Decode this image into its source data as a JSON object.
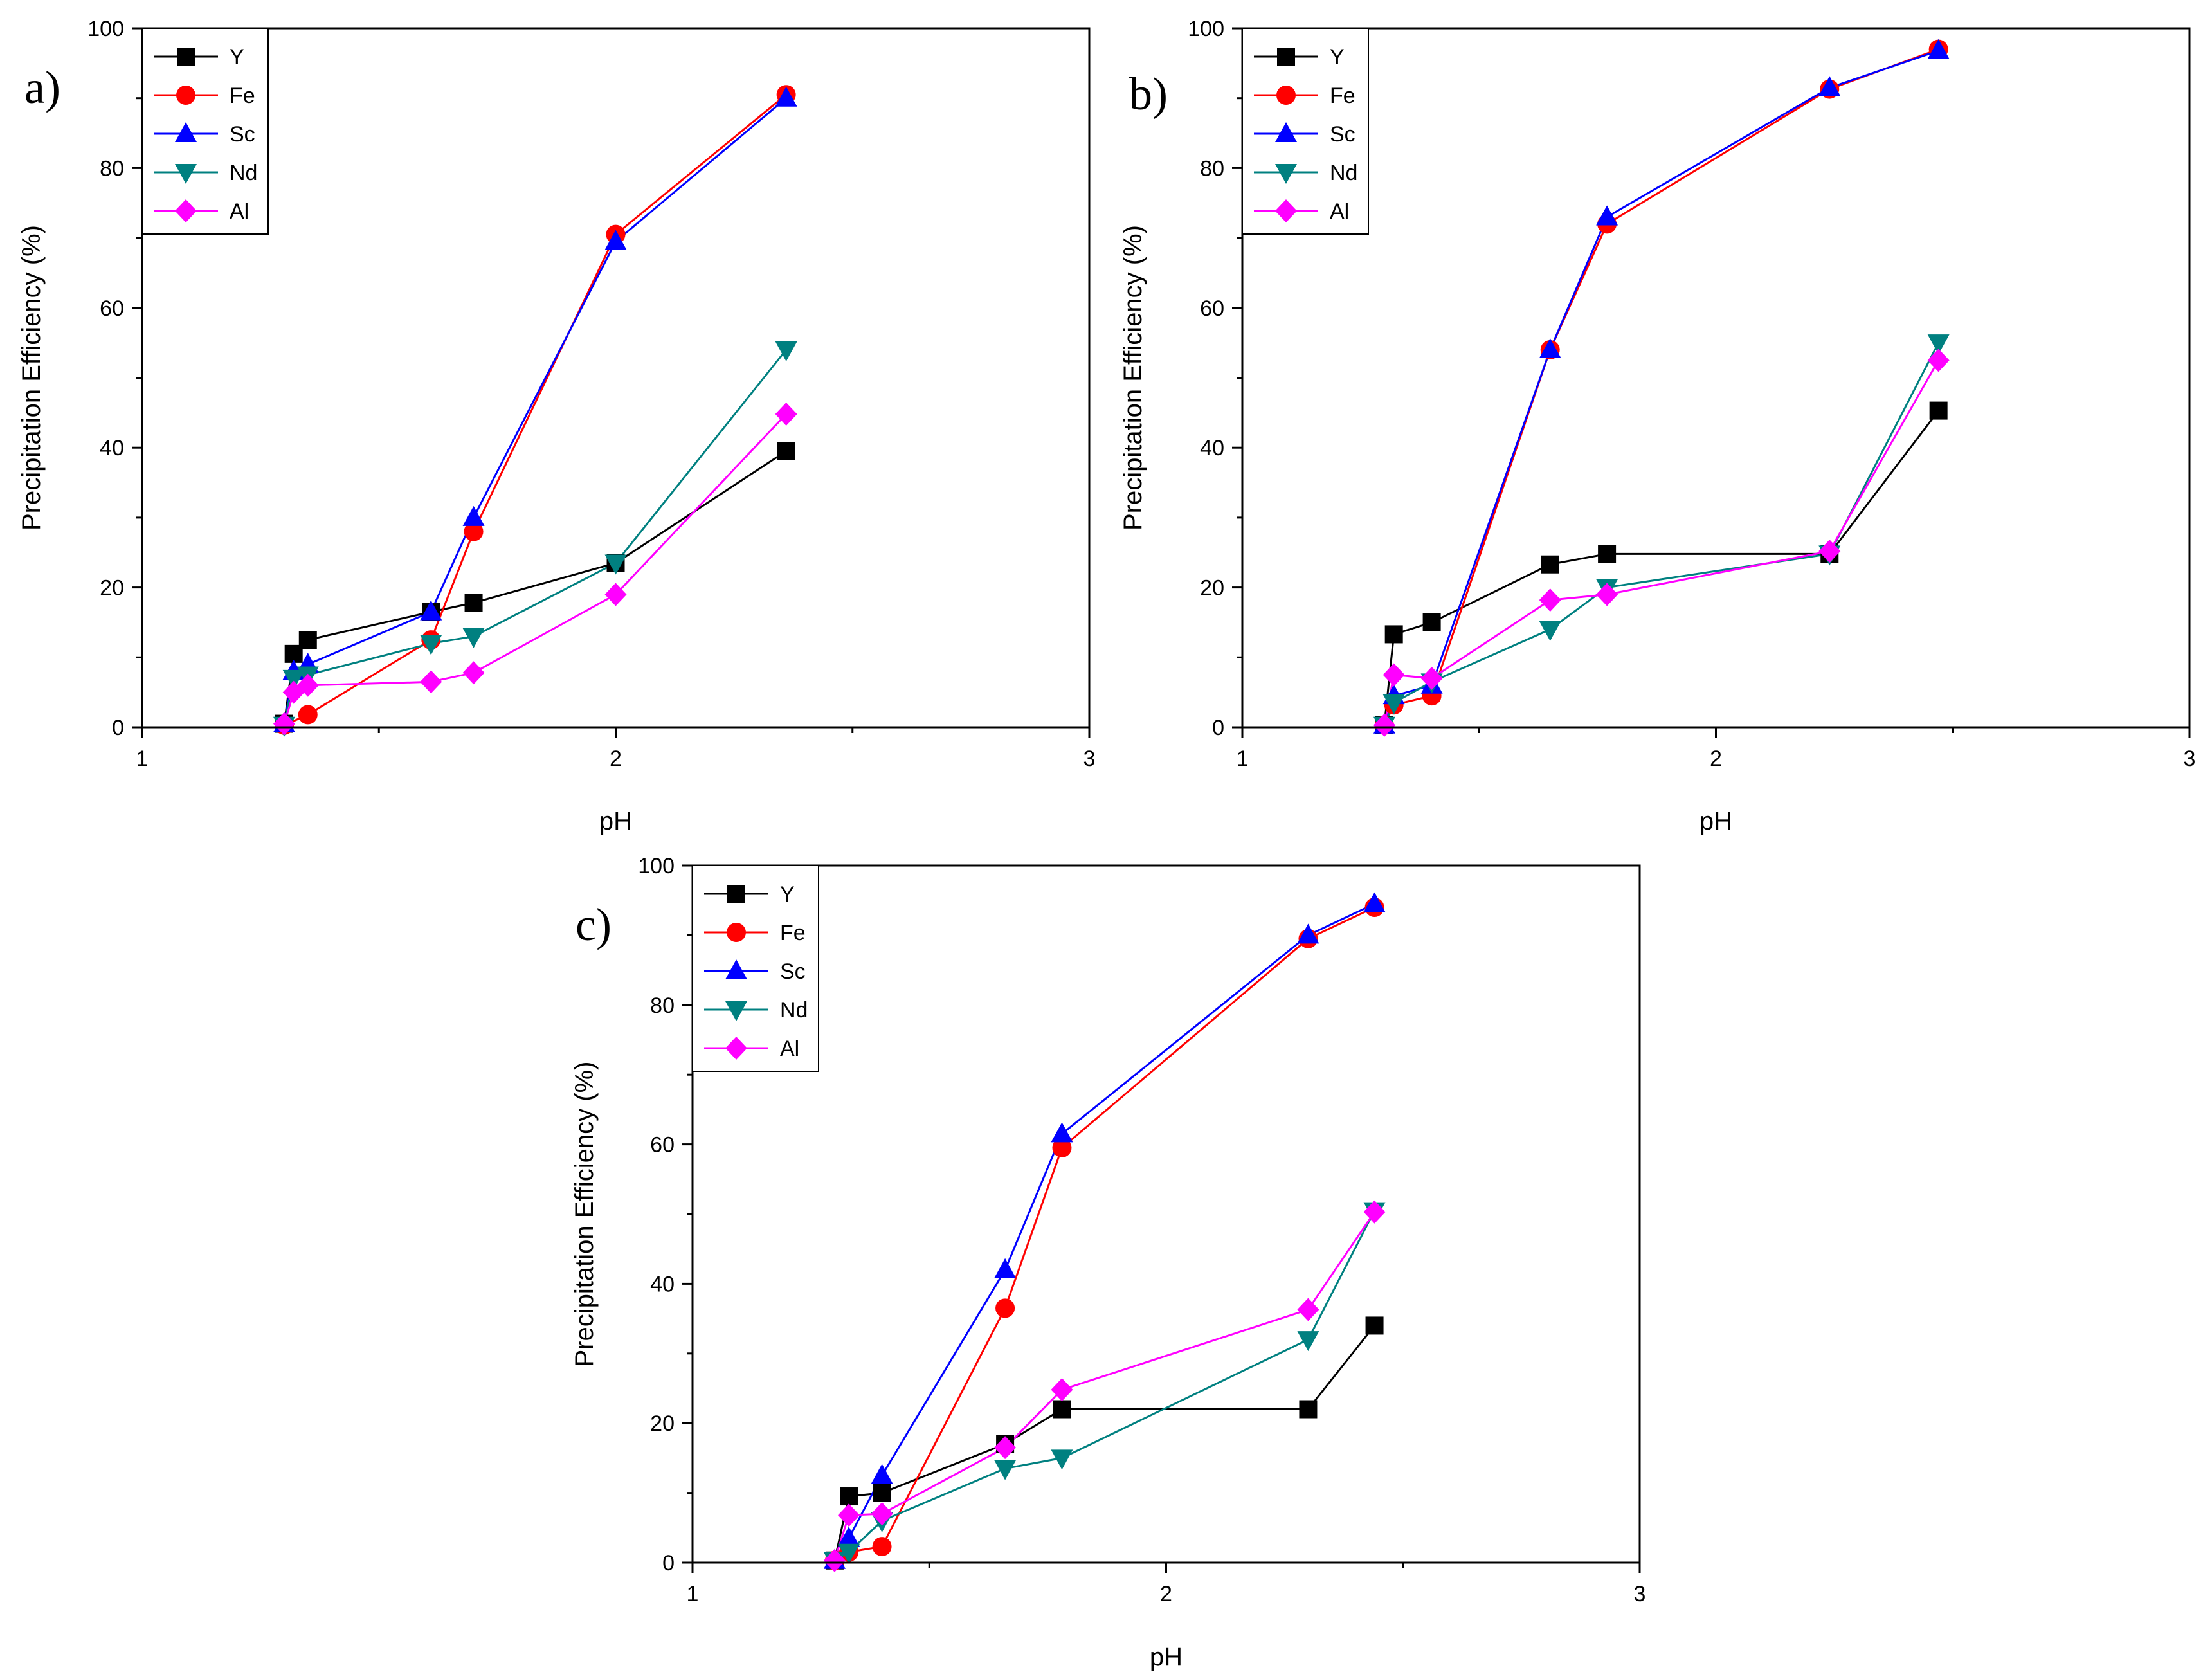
{
  "chart_data": [
    {
      "type": "line",
      "panel_label": "a)",
      "title": "",
      "xlabel": "pH",
      "ylabel": "Precipitation Efficiency (%)",
      "xlim": [
        1,
        3
      ],
      "ylim": [
        0,
        100
      ],
      "xticks": [
        "1",
        "2",
        "3"
      ],
      "yticks": [
        "0",
        "20",
        "40",
        "60",
        "80",
        "100"
      ],
      "legend_position": "top-left",
      "series": [
        {
          "name": "Y",
          "color": "#000000",
          "marker": "square",
          "x": [
            1.3,
            1.32,
            1.35,
            1.61,
            1.7,
            2.0,
            2.36
          ],
          "y": [
            0.5,
            10.5,
            12.5,
            16.5,
            17.8,
            23.5,
            39.5
          ]
        },
        {
          "name": "Fe",
          "color": "#ff0000",
          "marker": "circle",
          "x": [
            1.3,
            1.35,
            1.61,
            1.7,
            2.0,
            2.36
          ],
          "y": [
            0.3,
            1.8,
            12.5,
            28.0,
            70.5,
            90.5
          ]
        },
        {
          "name": "Sc",
          "color": "#0000ff",
          "marker": "triangle-up",
          "x": [
            1.3,
            1.32,
            1.35,
            1.61,
            1.7,
            2.0,
            2.36
          ],
          "y": [
            0.5,
            8.0,
            9.0,
            16.5,
            30.0,
            69.5,
            90.0
          ]
        },
        {
          "name": "Nd",
          "color": "#008080",
          "marker": "triangle-down",
          "x": [
            1.3,
            1.32,
            1.35,
            1.61,
            1.7,
            2.0,
            2.36
          ],
          "y": [
            0.3,
            7.0,
            7.5,
            12.0,
            13.0,
            23.5,
            54.0
          ]
        },
        {
          "name": "Al",
          "color": "#ff00ff",
          "marker": "diamond",
          "x": [
            1.3,
            1.32,
            1.35,
            1.61,
            1.7,
            2.0,
            2.36
          ],
          "y": [
            0.5,
            5.0,
            6.0,
            6.5,
            7.8,
            19.0,
            44.8
          ]
        }
      ]
    },
    {
      "type": "line",
      "panel_label": "b)",
      "title": "",
      "xlabel": "pH",
      "ylabel": "Precipitation Efficiency (%)",
      "xlim": [
        1,
        3
      ],
      "ylim": [
        0,
        100
      ],
      "xticks": [
        "1",
        "2",
        "3"
      ],
      "yticks": [
        "0",
        "20",
        "40",
        "60",
        "80",
        "100"
      ],
      "legend_position": "top-left",
      "series": [
        {
          "name": "Y",
          "color": "#000000",
          "marker": "square",
          "x": [
            1.3,
            1.32,
            1.4,
            1.65,
            1.77,
            2.24,
            2.47
          ],
          "y": [
            0.3,
            13.3,
            15.0,
            23.3,
            24.8,
            24.8,
            45.3
          ]
        },
        {
          "name": "Fe",
          "color": "#ff0000",
          "marker": "circle",
          "x": [
            1.3,
            1.32,
            1.4,
            1.65,
            1.77,
            2.24,
            2.47
          ],
          "y": [
            0.3,
            3.2,
            4.5,
            54.0,
            72.0,
            91.3,
            97.0
          ]
        },
        {
          "name": "Sc",
          "color": "#0000ff",
          "marker": "triangle-up",
          "x": [
            1.3,
            1.32,
            1.4,
            1.65,
            1.77,
            2.24,
            2.47
          ],
          "y": [
            0.3,
            4.5,
            6.0,
            54.0,
            73.0,
            91.5,
            96.8
          ]
        },
        {
          "name": "Nd",
          "color": "#008080",
          "marker": "triangle-down",
          "x": [
            1.3,
            1.32,
            1.4,
            1.65,
            1.77,
            2.24,
            2.47
          ],
          "y": [
            0.3,
            3.5,
            6.5,
            14.0,
            20.0,
            24.8,
            55.0
          ]
        },
        {
          "name": "Al",
          "color": "#ff00ff",
          "marker": "diamond",
          "x": [
            1.3,
            1.32,
            1.4,
            1.65,
            1.77,
            2.24,
            2.47
          ],
          "y": [
            0.3,
            7.5,
            7.0,
            18.2,
            19.0,
            25.2,
            52.5
          ]
        }
      ]
    },
    {
      "type": "line",
      "panel_label": "c)",
      "title": "",
      "xlabel": "pH",
      "ylabel": "Precipitation Efficiency (%)",
      "xlim": [
        1,
        3
      ],
      "ylim": [
        0,
        100
      ],
      "xticks": [
        "1",
        "2",
        "3"
      ],
      "yticks": [
        "0",
        "20",
        "40",
        "60",
        "80",
        "100"
      ],
      "legend_position": "top-left",
      "series": [
        {
          "name": "Y",
          "color": "#000000",
          "marker": "square",
          "x": [
            1.3,
            1.33,
            1.4,
            1.66,
            1.78,
            2.3,
            2.44
          ],
          "y": [
            0.3,
            9.5,
            10.0,
            17.0,
            22.0,
            22.0,
            34.0
          ]
        },
        {
          "name": "Fe",
          "color": "#ff0000",
          "marker": "circle",
          "x": [
            1.3,
            1.33,
            1.4,
            1.66,
            1.78,
            2.3,
            2.44
          ],
          "y": [
            0.3,
            1.5,
            2.3,
            36.5,
            59.5,
            89.5,
            94.0
          ]
        },
        {
          "name": "Sc",
          "color": "#0000ff",
          "marker": "triangle-up",
          "x": [
            1.3,
            1.33,
            1.4,
            1.66,
            1.78,
            2.3,
            2.44
          ],
          "y": [
            0.3,
            3.5,
            12.5,
            42.0,
            61.5,
            90.0,
            94.5
          ]
        },
        {
          "name": "Nd",
          "color": "#008080",
          "marker": "triangle-down",
          "x": [
            1.3,
            1.33,
            1.4,
            1.66,
            1.78,
            2.3,
            2.44
          ],
          "y": [
            0.3,
            1.5,
            6.0,
            13.5,
            15.0,
            32.0,
            50.5
          ]
        },
        {
          "name": "Al",
          "color": "#ff00ff",
          "marker": "diamond",
          "x": [
            1.3,
            1.33,
            1.4,
            1.66,
            1.78,
            2.3,
            2.44
          ],
          "y": [
            0.3,
            6.8,
            7.0,
            16.5,
            24.8,
            36.3,
            50.3
          ]
        }
      ]
    }
  ]
}
